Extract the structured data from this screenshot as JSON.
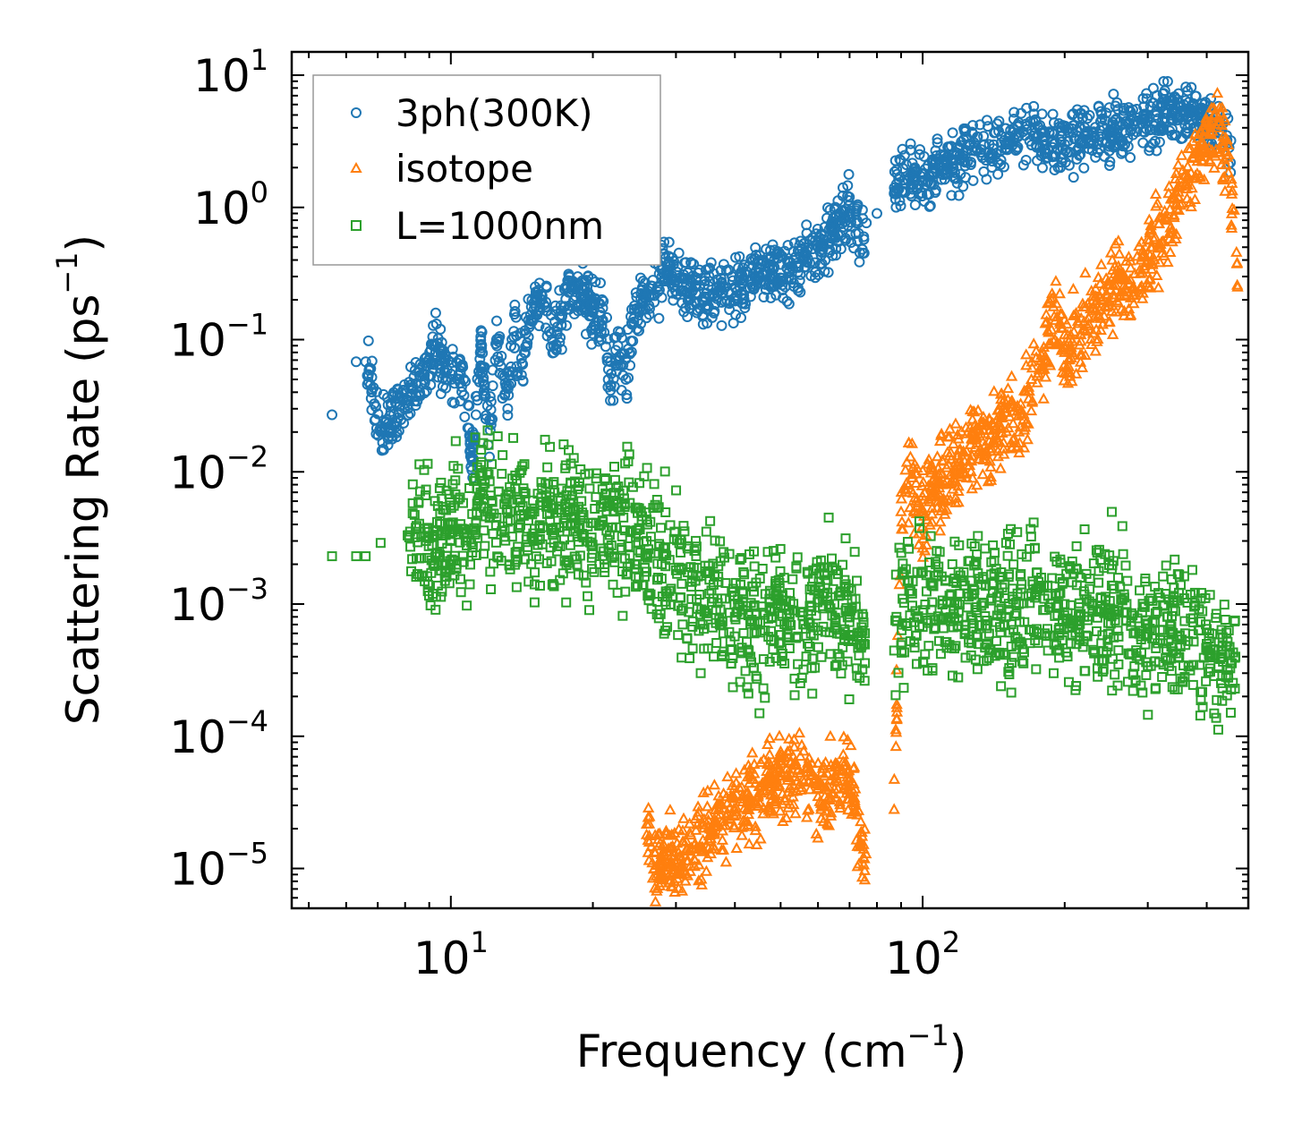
{
  "chart_data": {
    "type": "scatter",
    "title": "",
    "xscale": "log",
    "yscale": "log",
    "xlabel": {
      "base": "Frequency (cm",
      "sup": "−1",
      "close": ")"
    },
    "ylabel": {
      "base": "Scattering Rate (ps",
      "sup": "−1",
      "close": ")"
    },
    "xlim": [
      4.6,
      490
    ],
    "ylim": [
      5e-06,
      15
    ],
    "x_ticks": [
      {
        "value": 10,
        "base": "10",
        "exp": "1"
      },
      {
        "value": 100,
        "base": "10",
        "exp": "2"
      }
    ],
    "y_ticks": [
      {
        "value": 10,
        "base": "10",
        "exp": "1"
      },
      {
        "value": 1,
        "base": "10",
        "exp": "0"
      },
      {
        "value": 0.1,
        "base": "10",
        "exp": "−1"
      },
      {
        "value": 0.01,
        "base": "10",
        "exp": "−2"
      },
      {
        "value": 0.001,
        "base": "10",
        "exp": "−3"
      },
      {
        "value": 0.0001,
        "base": "10",
        "exp": "−4"
      },
      {
        "value": 1e-05,
        "base": "10",
        "exp": "−5"
      }
    ],
    "legend_position": "top-left",
    "series": [
      {
        "name": "3ph(300K)",
        "marker": "circle",
        "color": "#1f77b4",
        "sample_points": [
          [
            5.6,
            0.027
          ],
          [
            6.3,
            0.068
          ],
          [
            6.6,
            0.068
          ],
          [
            7.1,
            0.02
          ],
          [
            8.1,
            0.035
          ],
          [
            8.1,
            0.032
          ],
          [
            9.3,
            0.09
          ],
          [
            10,
            0.055
          ],
          [
            10.6,
            0.062
          ],
          [
            11.1,
            0.012
          ],
          [
            11.6,
            0.092
          ],
          [
            12,
            0.016
          ],
          [
            12.5,
            0.1
          ],
          [
            12.8,
            0.075
          ],
          [
            13.2,
            0.03
          ],
          [
            13.6,
            0.105
          ],
          [
            14.2,
            0.065
          ],
          [
            14.6,
            0.14
          ],
          [
            15,
            0.17
          ],
          [
            15.6,
            0.2
          ],
          [
            16.4,
            0.1
          ],
          [
            17.2,
            0.15
          ],
          [
            18,
            0.24
          ],
          [
            19,
            0.2
          ],
          [
            20,
            0.16
          ],
          [
            21,
            0.14
          ],
          [
            21.8,
            0.045
          ],
          [
            22.6,
            0.09
          ],
          [
            23.5,
            0.05
          ],
          [
            24.5,
            0.18
          ],
          [
            26,
            0.22
          ],
          [
            28,
            0.3
          ],
          [
            30,
            0.28
          ],
          [
            33,
            0.25
          ],
          [
            36,
            0.22
          ],
          [
            40,
            0.25
          ],
          [
            44,
            0.3
          ],
          [
            48,
            0.35
          ],
          [
            52,
            0.32
          ],
          [
            56,
            0.4
          ],
          [
            60,
            0.5
          ],
          [
            65,
            0.7
          ],
          [
            70,
            0.9
          ],
          [
            75,
            0.6
          ],
          [
            80,
            0.9
          ],
          [
            88,
            1.5
          ],
          [
            95,
            1.8
          ],
          [
            100,
            1.6
          ],
          [
            110,
            1.9
          ],
          [
            120,
            2.5
          ],
          [
            130,
            2.8
          ],
          [
            140,
            2.5
          ],
          [
            150,
            3.0
          ],
          [
            160,
            3.5
          ],
          [
            170,
            3.8
          ],
          [
            180,
            3.2
          ],
          [
            200,
            3.0
          ],
          [
            220,
            3.5
          ],
          [
            250,
            3.8
          ],
          [
            280,
            4.2
          ],
          [
            300,
            4.5
          ],
          [
            330,
            5.2
          ],
          [
            360,
            5.0
          ],
          [
            400,
            4.5
          ],
          [
            430,
            3.8
          ],
          [
            450,
            3.2
          ]
        ]
      },
      {
        "name": "isotope",
        "marker": "triangle",
        "color": "#ff7f0e",
        "sample_points": [
          [
            26,
            1.8e-05
          ],
          [
            27,
            1e-05
          ],
          [
            30,
            1.1e-05
          ],
          [
            33,
            1.4e-05
          ],
          [
            36,
            2.2e-05
          ],
          [
            40,
            2.8e-05
          ],
          [
            44,
            3.2e-05
          ],
          [
            48,
            4.6e-05
          ],
          [
            52,
            5e-05
          ],
          [
            56,
            4.5e-05
          ],
          [
            60,
            3.5e-05
          ],
          [
            65,
            4e-05
          ],
          [
            68,
            6e-05
          ],
          [
            72,
            3e-05
          ],
          [
            75,
            1.4e-05
          ],
          [
            87,
            2.8e-05
          ],
          [
            90,
            0.005
          ],
          [
            95,
            0.009
          ],
          [
            100,
            0.005
          ],
          [
            110,
            0.008
          ],
          [
            120,
            0.012
          ],
          [
            130,
            0.018
          ],
          [
            140,
            0.015
          ],
          [
            150,
            0.03
          ],
          [
            160,
            0.02
          ],
          [
            170,
            0.05
          ],
          [
            180,
            0.08
          ],
          [
            190,
            0.15
          ],
          [
            200,
            0.08
          ],
          [
            220,
            0.12
          ],
          [
            240,
            0.2
          ],
          [
            260,
            0.3
          ],
          [
            280,
            0.25
          ],
          [
            300,
            0.4
          ],
          [
            330,
            0.8
          ],
          [
            360,
            1.5
          ],
          [
            390,
            3.0
          ],
          [
            420,
            4.0
          ],
          [
            445,
            2.5
          ],
          [
            465,
            0.25
          ]
        ]
      },
      {
        "name": "L=1000nm",
        "marker": "square",
        "color": "#2ca02c",
        "sample_points": [
          [
            5.6,
            0.0023
          ],
          [
            6.3,
            0.0023
          ],
          [
            6.6,
            0.0023
          ],
          [
            7.1,
            0.0029
          ],
          [
            8.1,
            0.0033
          ],
          [
            9.3,
            0.0024
          ],
          [
            10,
            0.003
          ],
          [
            10.6,
            0.0037
          ],
          [
            11.1,
            0.0048
          ],
          [
            11.6,
            0.0055
          ],
          [
            12.5,
            0.0045
          ],
          [
            13.2,
            0.0042
          ],
          [
            14.2,
            0.0055
          ],
          [
            15,
            0.003
          ],
          [
            16,
            0.0048
          ],
          [
            17,
            0.0038
          ],
          [
            18,
            0.0045
          ],
          [
            19,
            0.0033
          ],
          [
            20,
            0.0041
          ],
          [
            21,
            0.0042
          ],
          [
            22,
            0.0038
          ],
          [
            24,
            0.0035
          ],
          [
            26,
            0.003
          ],
          [
            28,
            0.002
          ],
          [
            30,
            0.0018
          ],
          [
            33,
            0.0015
          ],
          [
            36,
            0.0011
          ],
          [
            40,
            0.0008
          ],
          [
            44,
            0.0006
          ],
          [
            48,
            0.0008
          ],
          [
            52,
            0.0009
          ],
          [
            56,
            0.0007
          ],
          [
            60,
            0.0012
          ],
          [
            65,
            0.001
          ],
          [
            70,
            0.0008
          ],
          [
            75,
            0.0005
          ],
          [
            88,
            0.0008
          ],
          [
            95,
            0.0012
          ],
          [
            100,
            0.0009
          ],
          [
            110,
            0.001
          ],
          [
            120,
            0.0012
          ],
          [
            130,
            0.0009
          ],
          [
            140,
            0.0011
          ],
          [
            150,
            0.0008
          ],
          [
            160,
            0.001
          ],
          [
            170,
            0.0012
          ],
          [
            180,
            0.0009
          ],
          [
            200,
            0.001
          ],
          [
            220,
            0.0008
          ],
          [
            250,
            0.0009
          ],
          [
            280,
            0.0006
          ],
          [
            300,
            0.0007
          ],
          [
            330,
            0.0008
          ],
          [
            360,
            0.0006
          ],
          [
            400,
            0.0005
          ],
          [
            430,
            0.0004
          ],
          [
            460,
            0.0004
          ]
        ]
      }
    ]
  }
}
